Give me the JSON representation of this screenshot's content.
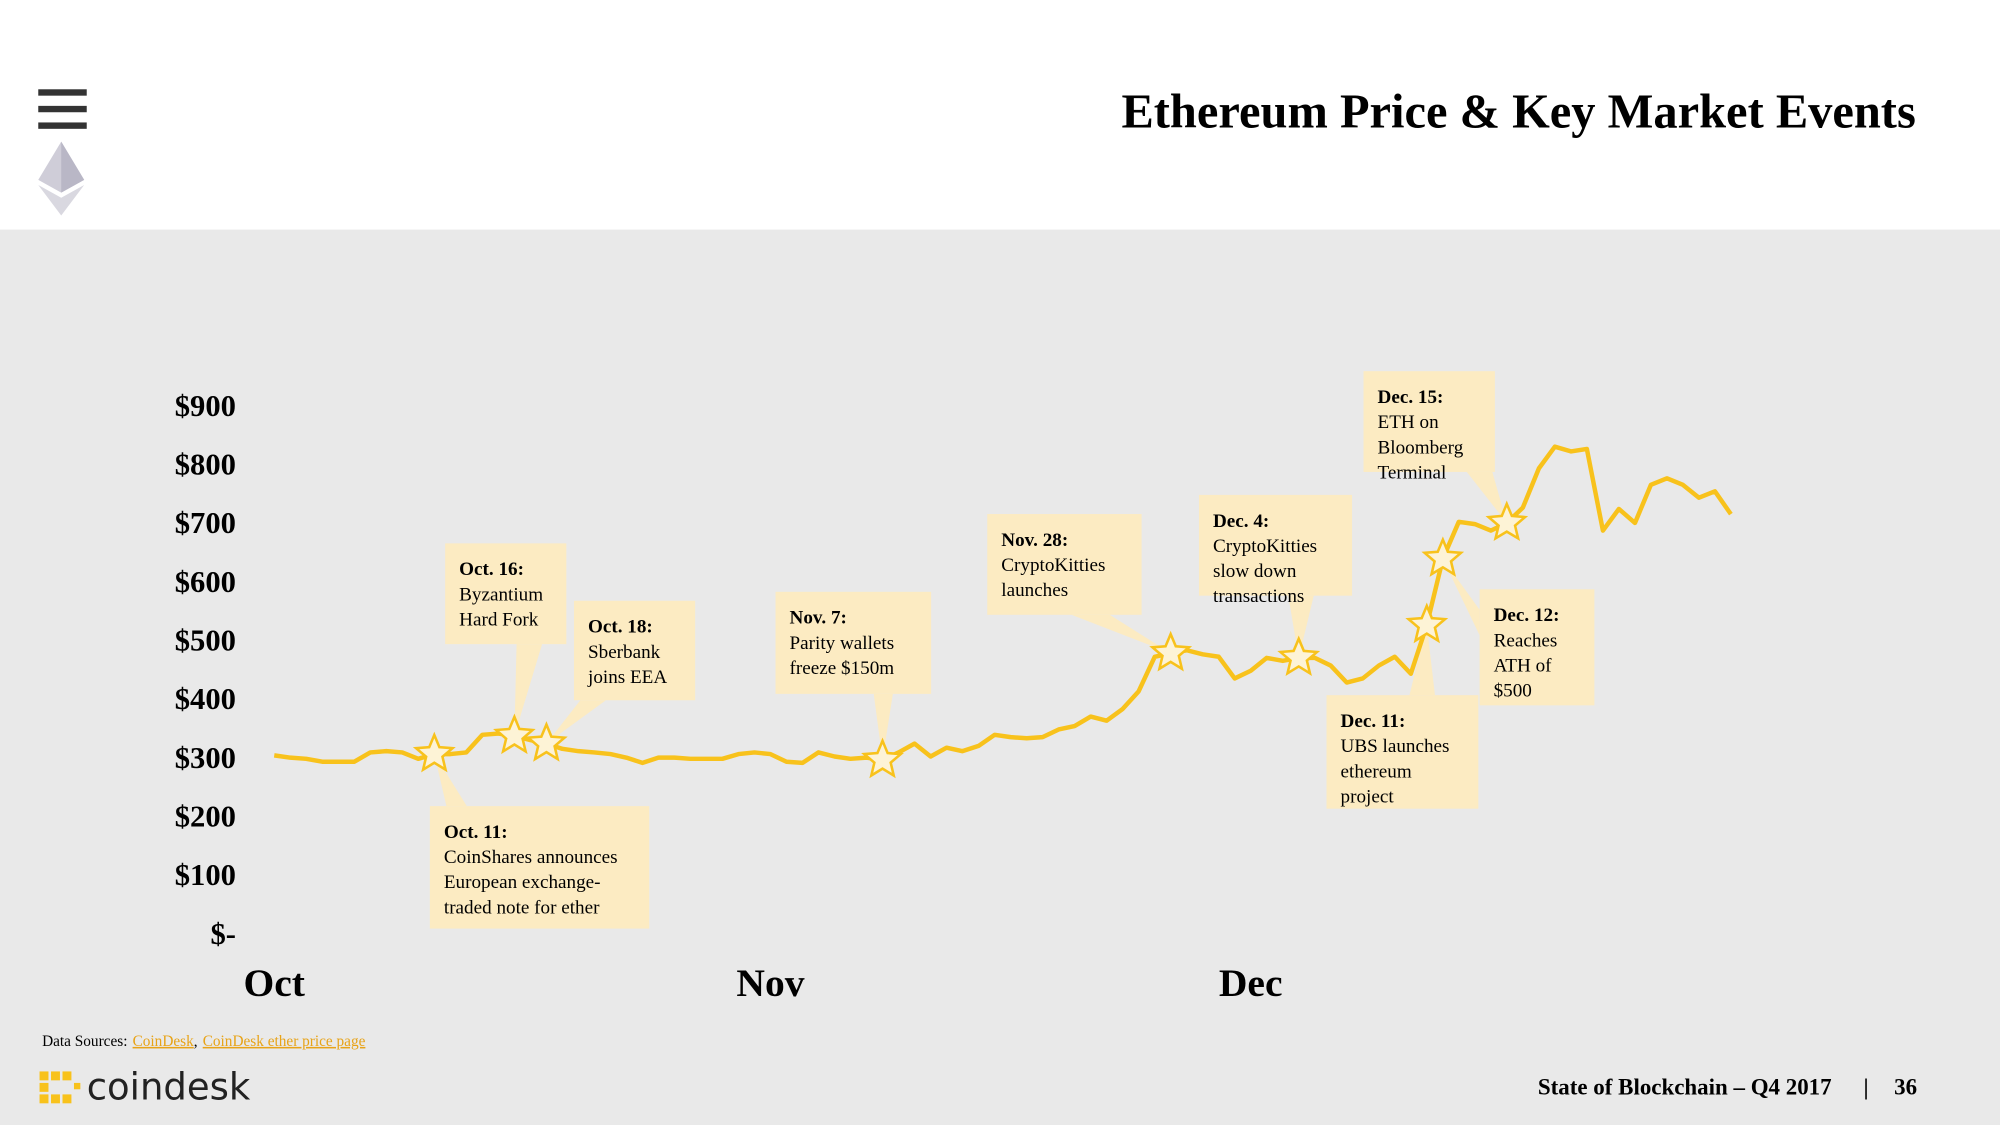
{
  "header": {
    "title": "Ethereum Price & Key Market Events"
  },
  "chart_data": {
    "type": "line",
    "color": "#f8c21c",
    "grid": false,
    "categories": [
      "Oct",
      null,
      null,
      null,
      null,
      null,
      null,
      null,
      null,
      null,
      null,
      null,
      null,
      null,
      null,
      null,
      null,
      null,
      null,
      null,
      null,
      null,
      null,
      null,
      null,
      null,
      null,
      null,
      null,
      null,
      null,
      "Nov",
      null,
      null,
      null,
      null,
      null,
      null,
      null,
      null,
      null,
      null,
      null,
      null,
      null,
      null,
      null,
      null,
      null,
      null,
      null,
      null,
      null,
      null,
      null,
      null,
      null,
      null,
      null,
      null,
      null,
      "Dec",
      null,
      null,
      null,
      null,
      null,
      null,
      null,
      null,
      null,
      null,
      null,
      null,
      null,
      null,
      null,
      null,
      null,
      null,
      null,
      null,
      null,
      null,
      null,
      null,
      null,
      null,
      null,
      null,
      null,
      null
    ],
    "values": [
      304,
      300,
      298,
      293,
      293,
      293,
      309,
      311,
      309,
      298,
      306,
      306,
      309,
      339,
      341,
      337,
      330,
      324,
      315,
      311,
      309,
      306,
      300,
      291,
      300,
      300,
      298,
      298,
      298,
      306,
      309,
      306,
      293,
      291,
      309,
      302,
      298,
      300,
      296,
      309,
      324,
      302,
      317,
      311,
      320,
      339,
      335,
      333,
      335,
      348,
      354,
      370,
      363,
      383,
      413,
      472,
      478,
      483,
      476,
      472,
      435,
      448,
      470,
      465,
      470,
      470,
      457,
      428,
      435,
      457,
      472,
      443,
      526,
      639,
      702,
      698,
      687,
      700,
      726,
      793,
      830,
      822,
      826,
      687,
      724,
      700,
      765,
      776,
      765,
      743,
      754,
      715
    ],
    "ylim": [
      0,
      900
    ],
    "yticks": [
      {
        "value": 0,
        "label": "$-"
      },
      {
        "value": 100,
        "label": "$100"
      },
      {
        "value": 200,
        "label": "$200"
      },
      {
        "value": 300,
        "label": "$300"
      },
      {
        "value": 400,
        "label": "$400"
      },
      {
        "value": 500,
        "label": "$500"
      },
      {
        "value": 600,
        "label": "$600"
      },
      {
        "value": 700,
        "label": "$700"
      },
      {
        "value": 800,
        "label": "$800"
      },
      {
        "value": 900,
        "label": "$900"
      }
    ],
    "annotations": [
      {
        "date": "Oct. 11:",
        "text": [
          "CoinShares announces",
          "European exchange-",
          "traded note for ether"
        ]
      },
      {
        "date": "Oct. 16:",
        "text": [
          "Byzantium",
          "Hard Fork"
        ]
      },
      {
        "date": "Oct. 18:",
        "text": [
          "Sberbank",
          "joins EEA"
        ]
      },
      {
        "date": "Nov. 7:",
        "text": [
          "Parity wallets",
          "freeze $150m"
        ]
      },
      {
        "date": "Nov. 28:",
        "text": [
          "CryptoKitties",
          "launches"
        ]
      },
      {
        "date": "Dec. 4:",
        "text": [
          "CryptoKitties",
          "slow down",
          "transactions"
        ]
      },
      {
        "date": "Dec. 11:",
        "text": [
          "UBS launches",
          "ethereum",
          "project"
        ]
      },
      {
        "date": "Dec. 12:",
        "text": [
          "Reaches",
          "ATH of",
          "$500"
        ]
      },
      {
        "date": "Dec. 15:",
        "text": [
          "ETH on",
          "Bloomberg",
          "Terminal"
        ]
      }
    ]
  },
  "footer": {
    "sources_label": "Data Sources:",
    "sources": [
      "CoinDesk",
      "CoinDesk ether price page"
    ],
    "source_separator": ",",
    "logo": "coindesk",
    "report": "State of Blockchain – Q4 2017",
    "separator": "|",
    "page": "36"
  }
}
